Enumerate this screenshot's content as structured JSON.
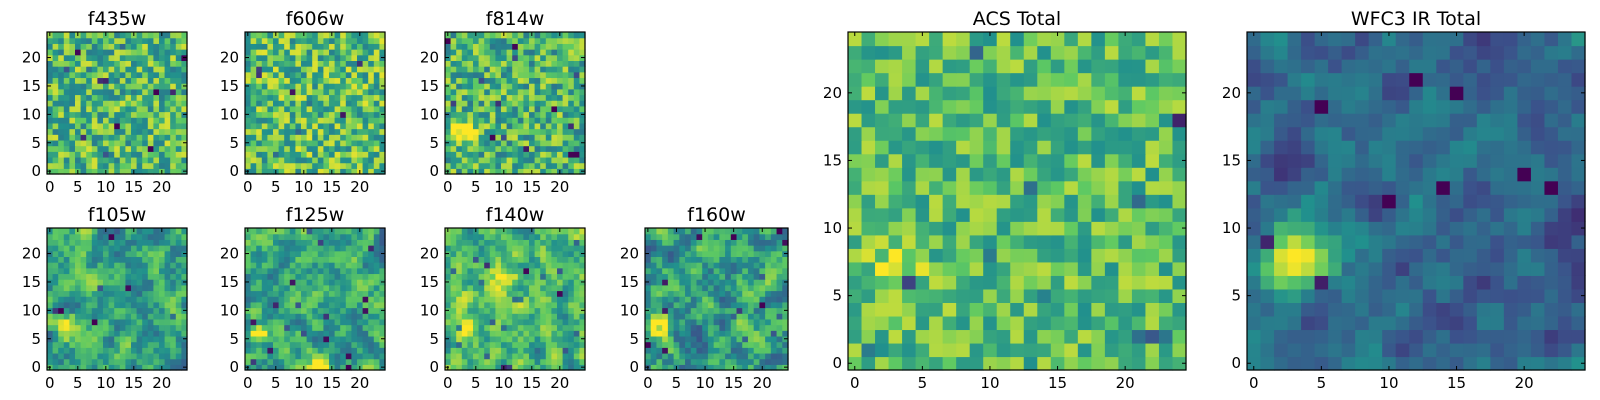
{
  "figure": {
    "colormap": "viridis",
    "colormap_stops": [
      "#440154",
      "#3b528b",
      "#21908d",
      "#5dc963",
      "#fde725"
    ]
  },
  "chart_data": [
    {
      "id": "f435w",
      "type": "heatmap",
      "title": "f435w",
      "grid": false,
      "xlim": [
        0,
        24
      ],
      "ylim": [
        0,
        24
      ],
      "xticks": [
        "0",
        "5",
        "10",
        "15",
        "20"
      ],
      "yticks": [
        "0",
        "5",
        "10",
        "15",
        "20"
      ],
      "pattern": "noise",
      "noise_seed": 11,
      "base_level": 0.68,
      "noise_amplitude": 0.26,
      "sharpness": 1.6,
      "hotspots": []
    },
    {
      "id": "f606w",
      "type": "heatmap",
      "title": "f606w",
      "grid": false,
      "xlim": [
        0,
        24
      ],
      "ylim": [
        0,
        24
      ],
      "xticks": [
        "0",
        "5",
        "10",
        "15",
        "20"
      ],
      "yticks": [
        "0",
        "5",
        "10",
        "15",
        "20"
      ],
      "pattern": "noise",
      "noise_seed": 23,
      "base_level": 0.7,
      "noise_amplitude": 0.26,
      "sharpness": 1.6,
      "hotspots": []
    },
    {
      "id": "f814w",
      "type": "heatmap",
      "title": "f814w",
      "grid": false,
      "xlim": [
        0,
        24
      ],
      "ylim": [
        0,
        24
      ],
      "xticks": [
        "0",
        "5",
        "10",
        "15",
        "20"
      ],
      "yticks": [
        "0",
        "5",
        "10",
        "15",
        "20"
      ],
      "pattern": "noise",
      "noise_seed": 37,
      "base_level": 0.66,
      "noise_amplitude": 0.26,
      "sharpness": 1.4,
      "hotspots": [
        {
          "x": 3,
          "y": 7,
          "sigma": 1.5,
          "amplitude": 0.45
        }
      ]
    },
    {
      "id": "f105w",
      "type": "heatmap",
      "title": "f105w",
      "grid": false,
      "xlim": [
        0,
        24
      ],
      "ylim": [
        0,
        24
      ],
      "xticks": [
        "0",
        "5",
        "10",
        "15",
        "20"
      ],
      "yticks": [
        "0",
        "5",
        "10",
        "15",
        "20"
      ],
      "pattern": "smooth",
      "noise_seed": 41,
      "base_level": 0.58,
      "noise_amplitude": 0.22,
      "sharpness": 1.3,
      "hotspots": [
        {
          "x": 3,
          "y": 7,
          "sigma": 1.3,
          "amplitude": 0.55
        }
      ]
    },
    {
      "id": "f125w",
      "type": "heatmap",
      "title": "f125w",
      "grid": false,
      "xlim": [
        0,
        24
      ],
      "ylim": [
        0,
        24
      ],
      "xticks": [
        "0",
        "5",
        "10",
        "15",
        "20"
      ],
      "yticks": [
        "0",
        "5",
        "10",
        "15",
        "20"
      ],
      "pattern": "smooth",
      "noise_seed": 53,
      "base_level": 0.6,
      "noise_amplitude": 0.22,
      "sharpness": 1.3,
      "hotspots": [
        {
          "x": 2,
          "y": 6,
          "sigma": 1.3,
          "amplitude": 0.5
        },
        {
          "x": 13,
          "y": 0,
          "sigma": 1.2,
          "amplitude": 0.4
        }
      ]
    },
    {
      "id": "f140w",
      "type": "heatmap",
      "title": "f140w",
      "grid": false,
      "xlim": [
        0,
        24
      ],
      "ylim": [
        0,
        24
      ],
      "xticks": [
        "0",
        "5",
        "10",
        "15",
        "20"
      ],
      "yticks": [
        "0",
        "5",
        "10",
        "15",
        "20"
      ],
      "pattern": "smooth",
      "noise_seed": 67,
      "base_level": 0.66,
      "noise_amplitude": 0.22,
      "sharpness": 1.3,
      "hotspots": [
        {
          "x": 3,
          "y": 7,
          "sigma": 1.6,
          "amplitude": 0.5
        },
        {
          "x": 10,
          "y": 16,
          "sigma": 2.0,
          "amplitude": 0.25
        }
      ]
    },
    {
      "id": "f160w",
      "type": "heatmap",
      "title": "f160w",
      "grid": false,
      "xlim": [
        0,
        24
      ],
      "ylim": [
        0,
        24
      ],
      "xticks": [
        "0",
        "5",
        "10",
        "15",
        "20"
      ],
      "yticks": [
        "0",
        "5",
        "10",
        "15",
        "20"
      ],
      "pattern": "smooth",
      "noise_seed": 79,
      "base_level": 0.56,
      "noise_amplitude": 0.24,
      "sharpness": 1.4,
      "hotspots": [
        {
          "x": 2,
          "y": 7,
          "sigma": 1.4,
          "amplitude": 0.55
        }
      ]
    },
    {
      "id": "acs-total",
      "type": "heatmap",
      "title": "ACS Total",
      "grid": false,
      "xlim": [
        0,
        24
      ],
      "ylim": [
        0,
        24
      ],
      "xticks": [
        "0",
        "5",
        "10",
        "15",
        "20"
      ],
      "yticks": [
        "0",
        "5",
        "10",
        "15",
        "20"
      ],
      "pattern": "noise",
      "noise_seed": 97,
      "base_level": 0.7,
      "noise_amplitude": 0.2,
      "sharpness": 1.8,
      "hotspots": [
        {
          "x": 3,
          "y": 7,
          "sigma": 1.2,
          "amplitude": 0.3
        }
      ]
    },
    {
      "id": "wfc3-ir-total",
      "type": "heatmap",
      "title": "WFC3 IR Total",
      "grid": false,
      "xlim": [
        0,
        24
      ],
      "ylim": [
        0,
        24
      ],
      "xticks": [
        "0",
        "5",
        "10",
        "15",
        "20"
      ],
      "yticks": [
        "0",
        "5",
        "10",
        "15",
        "20"
      ],
      "pattern": "smooth",
      "noise_seed": 113,
      "base_level": 0.34,
      "noise_amplitude": 0.14,
      "sharpness": 1.0,
      "hotspots": [
        {
          "x": 3,
          "y": 8,
          "sigma": 1.8,
          "amplitude": 0.65
        },
        {
          "x": 12,
          "y": 12,
          "sigma": 1.2,
          "amplitude": 0.15
        }
      ]
    }
  ]
}
